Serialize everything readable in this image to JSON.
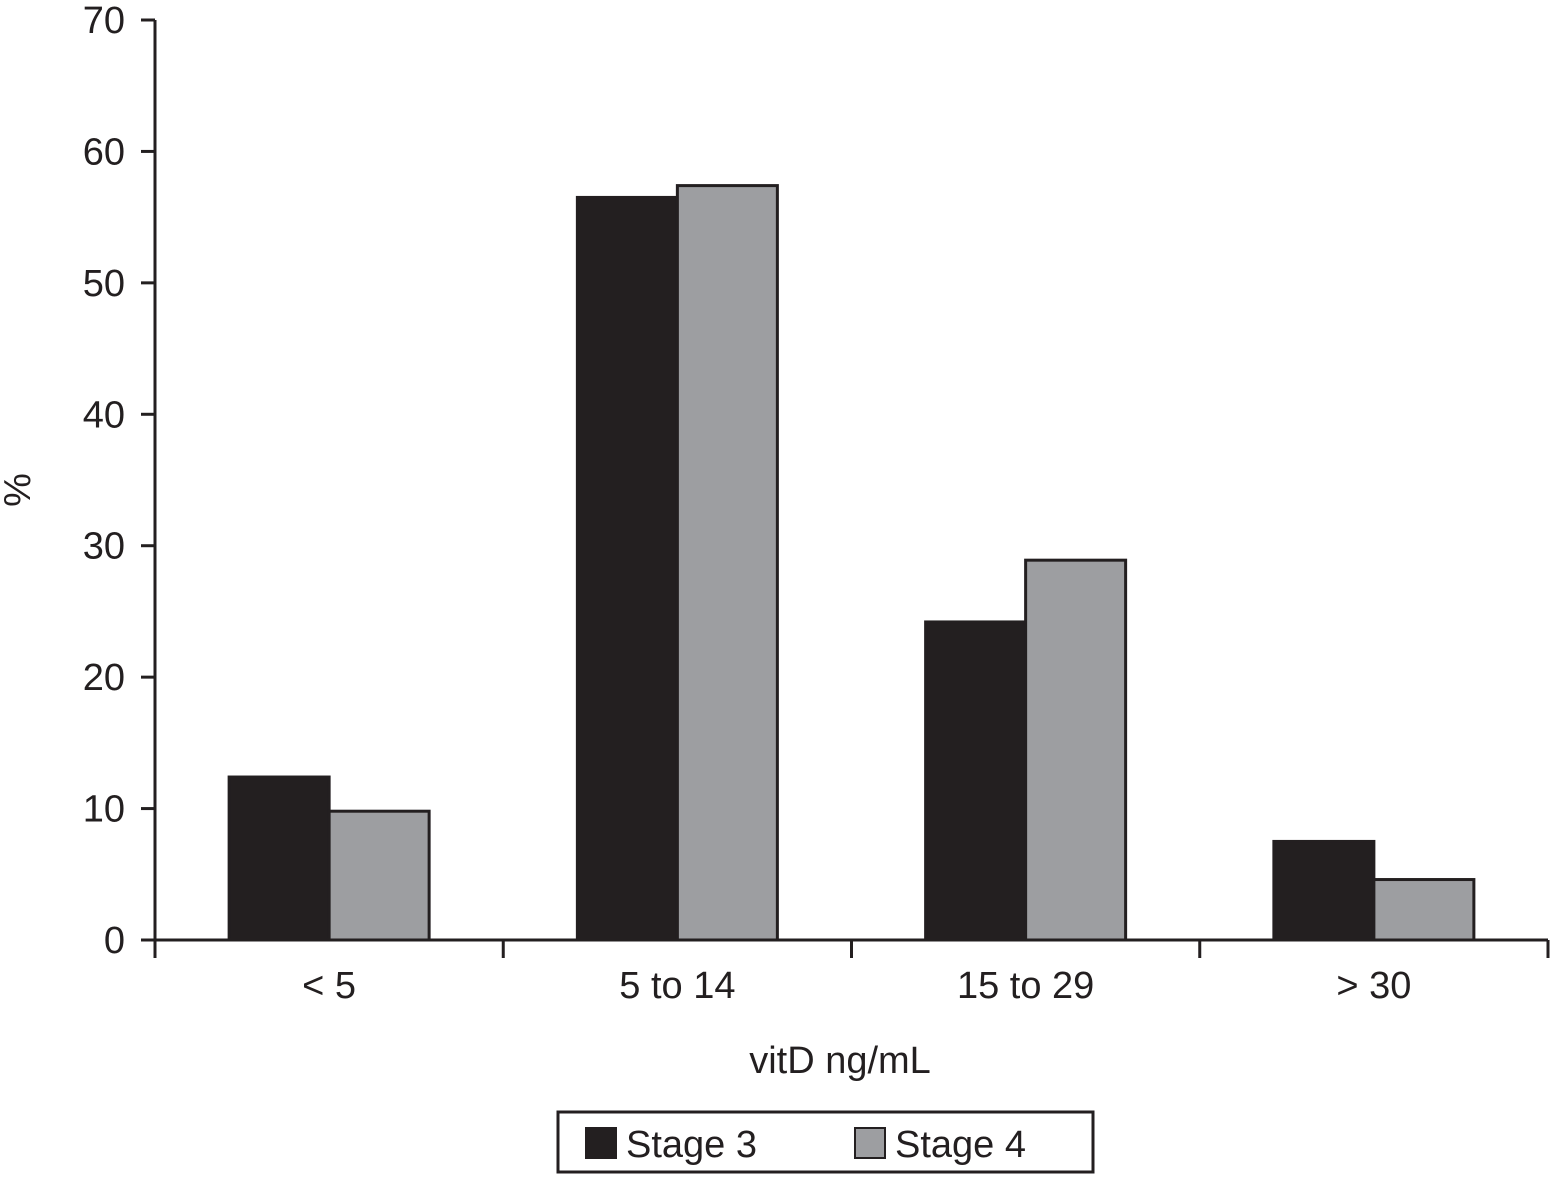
{
  "chart_data": {
    "type": "bar",
    "categories": [
      "< 5",
      "5 to 14",
      "15 to 29",
      "> 30"
    ],
    "series": [
      {
        "name": "Stage 3",
        "values": [
          12.4,
          56.5,
          24.2,
          7.5
        ],
        "color": "#231f20"
      },
      {
        "name": "Stage 4",
        "values": [
          9.8,
          57.4,
          28.9,
          4.6
        ],
        "color": "#9d9ea1"
      }
    ],
    "xlabel": "vitD ng/mL",
    "ylabel": "%",
    "ylim": [
      0,
      70
    ],
    "yticks": [
      0,
      10,
      20,
      30,
      40,
      50,
      60,
      70
    ],
    "grid": false,
    "legend_position": "bottom"
  }
}
